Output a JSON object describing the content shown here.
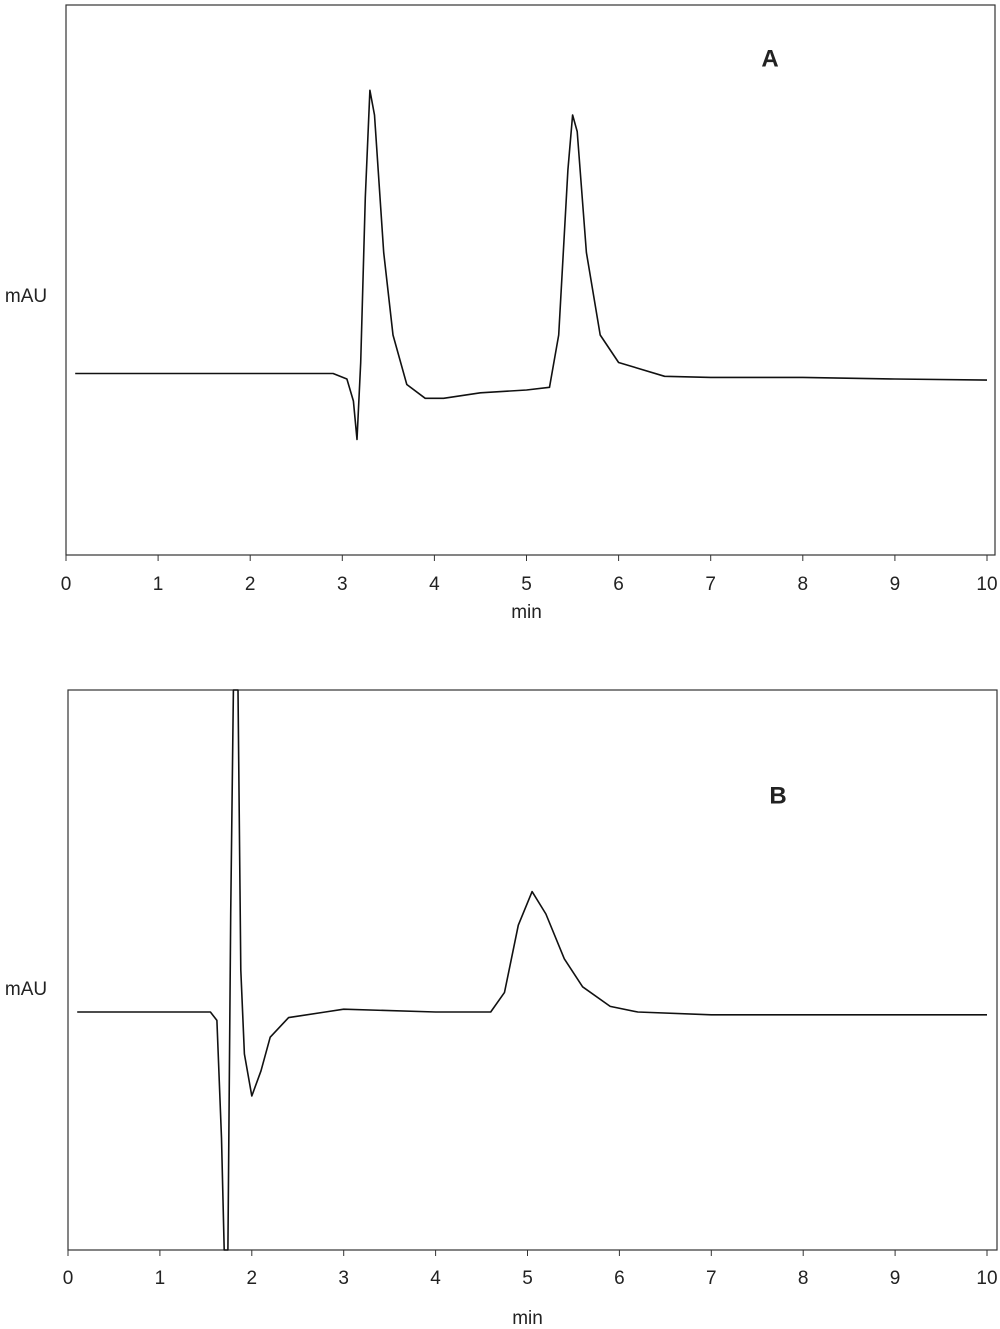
{
  "chart_data": [
    {
      "type": "line",
      "annotation": "A",
      "xlabel": "min",
      "ylabel": "mAU",
      "x": [
        0.1,
        1,
        2,
        2.9,
        3.05,
        3.12,
        3.16,
        3.2,
        3.25,
        3.3,
        3.35,
        3.45,
        3.55,
        3.7,
        3.9,
        4.1,
        4.5,
        5.0,
        5.25,
        5.35,
        5.45,
        5.5,
        5.55,
        5.65,
        5.8,
        6.0,
        6.5,
        7,
        8,
        9,
        10
      ],
      "series": [
        {
          "color": "#111111",
          "values": [
            33,
            33,
            33,
            33,
            32,
            28,
            21,
            35,
            65,
            84.5,
            80,
            55,
            40,
            31,
            28.5,
            28.5,
            29.5,
            30,
            30.5,
            40,
            70,
            80,
            77,
            55,
            40,
            35,
            32.5,
            32.3,
            32.3,
            32,
            31.8
          ]
        }
      ],
      "xlim": [
        0,
        10
      ],
      "xticks": [
        0,
        1,
        2,
        3,
        4,
        5,
        6,
        7,
        8,
        9,
        10
      ],
      "ylim": [
        0,
        100
      ]
    },
    {
      "type": "line",
      "annotation": "B",
      "xlabel": "min",
      "ylabel": "mAU",
      "x": [
        0.1,
        1,
        1.55,
        1.62,
        1.67,
        1.7,
        1.74,
        1.77,
        1.8,
        1.85,
        1.88,
        1.92,
        2.0,
        2.1,
        2.2,
        2.4,
        2.8,
        3,
        4,
        4.6,
        4.75,
        4.9,
        5.05,
        5.2,
        5.4,
        5.6,
        5.9,
        6.2,
        7,
        8,
        9,
        10
      ],
      "series": [
        {
          "color": "#111111",
          "values": [
            42.5,
            42.5,
            42.5,
            41,
            20,
            0,
            0,
            60,
            100,
            100,
            50,
            35,
            27.5,
            32,
            38,
            41.5,
            42.5,
            43,
            42.5,
            42.5,
            46,
            58,
            64,
            60,
            52,
            47,
            43.5,
            42.5,
            42,
            42,
            42,
            42
          ]
        }
      ],
      "xlim": [
        0,
        10
      ],
      "xticks": [
        0,
        1,
        2,
        3,
        4,
        5,
        6,
        7,
        8,
        9,
        10
      ],
      "ylim": [
        0,
        100
      ]
    }
  ]
}
